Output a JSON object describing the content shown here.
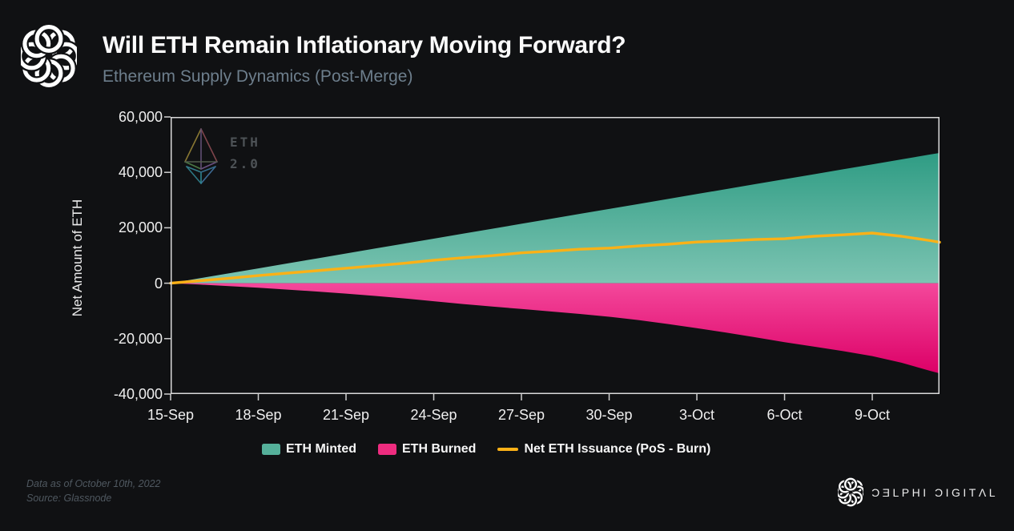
{
  "header": {
    "title": "Will ETH Remain Inflationary Moving Forward?",
    "subtitle": "Ethereum Supply Dynamics (Post-Merge)"
  },
  "watermark": {
    "line1": "ETH",
    "line2": "2.0"
  },
  "footer": {
    "data_as_of": "Data as of October 10th, 2022",
    "source": "Source: Glassnode",
    "brand": "ƆƎLPHI ƆIGITΛL"
  },
  "colors": {
    "mint_top": "#2f9c84",
    "mint_zero": "#7cc4b2",
    "burn_zero": "#f4489b",
    "burn_bottom": "#dc0067",
    "net_line": "#fbb117",
    "legend_mint": "#55b09a",
    "legend_burn": "#ee2c7f",
    "plot_border": "#d9d9d9",
    "tick": "#cfcfcf",
    "subtitle": "#6d7e8c"
  },
  "chart_data": {
    "type": "area",
    "title": "Will ETH Remain Inflationary Moving Forward?",
    "subtitle": "Ethereum Supply Dynamics (Post-Merge)",
    "xlabel": "",
    "ylabel": "Net Amount of ETH",
    "x_unit": "days since 15-Sep-2022",
    "x_domain": [
      0,
      26.3
    ],
    "y_domain": [
      -40000,
      60000
    ],
    "grid": false,
    "legend_position": "bottom",
    "y_ticks": [
      60000,
      40000,
      20000,
      0,
      -20000,
      -40000
    ],
    "y_tick_labels": [
      "60,000",
      "40,000",
      "20,000",
      "0",
      "-20,000",
      "-40,000"
    ],
    "x_ticks": [
      0,
      3,
      6,
      9,
      12,
      15,
      18,
      21,
      24
    ],
    "x_tick_labels": [
      "15-Sep",
      "18-Sep",
      "21-Sep",
      "24-Sep",
      "27-Sep",
      "30-Sep",
      "3-Oct",
      "6-Oct",
      "9-Oct"
    ],
    "legend": [
      {
        "label": "ETH Minted",
        "swatch": "area",
        "color": "#55b09a"
      },
      {
        "label": "ETH Burned",
        "swatch": "area",
        "color": "#ee2c7f"
      },
      {
        "label": "Net ETH Issuance (PoS - Burn)",
        "swatch": "line",
        "color": "#fbb117"
      }
    ],
    "series": {
      "x": [
        0,
        1,
        2,
        3,
        4,
        5,
        6,
        7,
        8,
        9,
        10,
        11,
        12,
        13,
        14,
        15,
        16,
        17,
        18,
        19,
        20,
        21,
        22,
        23,
        24,
        25,
        26,
        26.3
      ],
      "eth_minted": [
        0,
        1787,
        3574,
        5361,
        7148,
        8935,
        10722,
        12509,
        14296,
        16083,
        17870,
        19657,
        21444,
        23231,
        25018,
        26805,
        28592,
        30379,
        32166,
        33953,
        35740,
        37527,
        39314,
        41101,
        42888,
        44675,
        46462,
        47000
      ],
      "eth_burned": [
        0,
        -500,
        -1050,
        -1650,
        -2300,
        -3000,
        -3750,
        -4600,
        -5500,
        -6500,
        -7500,
        -8400,
        -9300,
        -10200,
        -11100,
        -12100,
        -13300,
        -14700,
        -16200,
        -17800,
        -19500,
        -21300,
        -22900,
        -24500,
        -26300,
        -28700,
        -31700,
        -32500
      ],
      "net_issuance": [
        0,
        900,
        1800,
        2750,
        3650,
        4500,
        5400,
        6300,
        7200,
        8300,
        9200,
        9950,
        10950,
        11550,
        12250,
        12650,
        13450,
        14050,
        14850,
        15250,
        15750,
        16050,
        16950,
        17450,
        18100,
        16950,
        15350,
        14800
      ]
    }
  }
}
